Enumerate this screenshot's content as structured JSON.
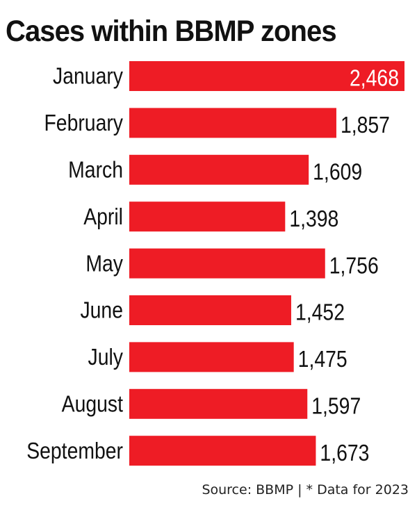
{
  "title": "Cases within BBMP zones",
  "source": "Source: BBMP | * Data for 2023",
  "colors": {
    "bar": "#ee1c25",
    "text": "#111111",
    "inside_label": "#ffffff"
  },
  "chart_data": {
    "type": "bar",
    "orientation": "horizontal",
    "title": "Cases within BBMP zones",
    "xlabel": "",
    "ylabel": "",
    "categories": [
      "January",
      "February",
      "March",
      "April",
      "May",
      "June",
      "July",
      "August",
      "September"
    ],
    "values": [
      2468,
      1857,
      1609,
      1398,
      1756,
      1452,
      1475,
      1597,
      1673
    ],
    "value_labels": [
      "2,468",
      "1,857",
      "1,609",
      "1,398",
      "1,756",
      "1,452",
      "1,475",
      "1,597",
      "1,673"
    ],
    "xlim": [
      0,
      2468
    ],
    "grid": false,
    "legend": "none"
  }
}
